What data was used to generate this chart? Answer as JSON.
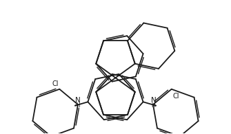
{
  "bg_color": "#ffffff",
  "bond_color": "#1a1a1a",
  "lw": 1.3,
  "lw_dbl": 1.0,
  "figsize": [
    3.35,
    1.95
  ],
  "dpi": 100,
  "xlim": [
    -3.5,
    3.5
  ],
  "ylim": [
    -2.3,
    3.2
  ]
}
